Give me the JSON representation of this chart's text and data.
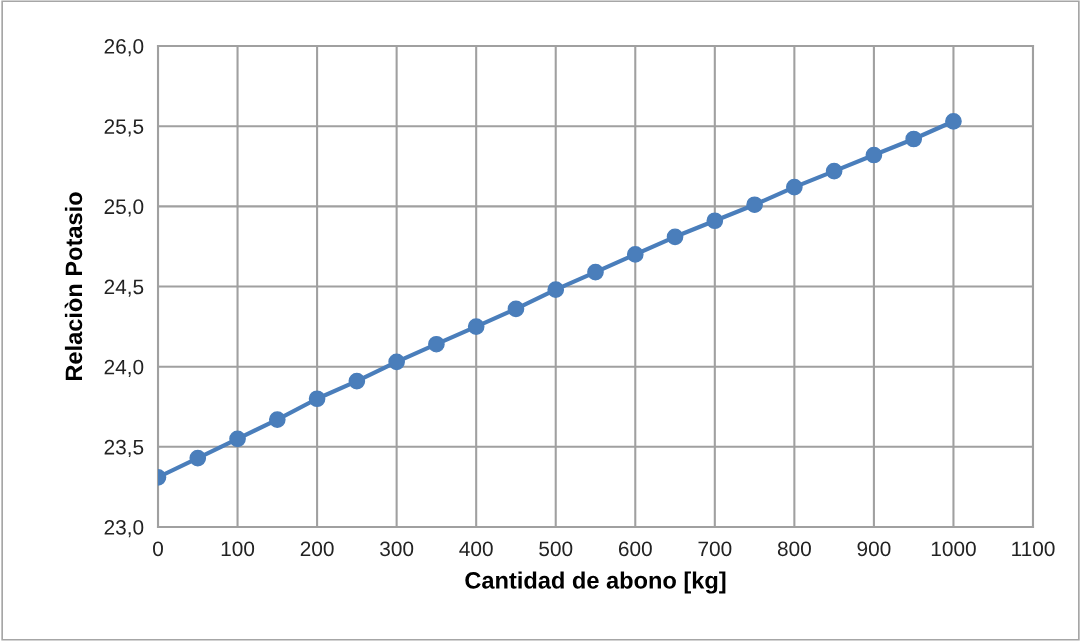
{
  "chart_data": {
    "type": "line",
    "xlabel": "Cantidad de abono [kg]",
    "ylabel": "Relaciòn Potasio",
    "x": [
      0,
      50,
      100,
      150,
      200,
      250,
      300,
      350,
      400,
      450,
      500,
      550,
      600,
      650,
      700,
      750,
      800,
      850,
      900,
      950,
      1000
    ],
    "series": [
      {
        "color": "#4a7ebb",
        "values": [
          23.31,
          23.43,
          23.55,
          23.67,
          23.8,
          23.91,
          24.03,
          24.14,
          24.25,
          24.36,
          24.48,
          24.59,
          24.7,
          24.81,
          24.91,
          25.01,
          25.12,
          25.22,
          25.32,
          25.42,
          25.53
        ]
      }
    ],
    "xlim": [
      0,
      1100
    ],
    "xticks": [
      0,
      100,
      200,
      300,
      400,
      500,
      600,
      700,
      800,
      900,
      1000,
      1100
    ],
    "ylim": [
      23.0,
      26.0
    ],
    "yticks": [
      {
        "value": 23.0,
        "label": "23,0"
      },
      {
        "value": 23.5,
        "label": "23,5"
      },
      {
        "value": 24.0,
        "label": "24,0"
      },
      {
        "value": 24.5,
        "label": "24,5"
      },
      {
        "value": 25.0,
        "label": "25,0"
      },
      {
        "value": 25.5,
        "label": "25,5"
      },
      {
        "value": 26.0,
        "label": "26,0"
      }
    ],
    "grid": true,
    "marker": "circle",
    "line_style": "solid",
    "legend": false
  }
}
